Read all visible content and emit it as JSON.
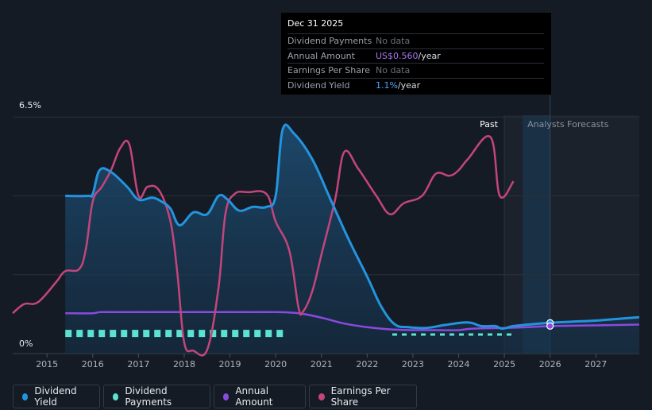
{
  "tooltip": {
    "date": "Dec 31 2025",
    "rows": [
      {
        "label": "Dividend Payments",
        "value": "No data",
        "unit": ""
      },
      {
        "label": "Annual Amount",
        "value": "US$0.560",
        "unit": "/year"
      },
      {
        "label": "Earnings Per Share",
        "value": "No data",
        "unit": ""
      },
      {
        "label": "Dividend Yield",
        "value": "1.1%",
        "unit": "/year"
      }
    ]
  },
  "colors": {
    "dividend_yield": "#2394df",
    "dividend_payments": "#5be3d0",
    "annual_amount": "#8a4ae0",
    "earnings_per_share": "#c4457b",
    "annual_amount_text": "#a974f5",
    "yield_text": "#4aa8ff"
  },
  "chart_data": {
    "type": "line",
    "title": "",
    "xlabel": "",
    "ylabel": "",
    "ylim": [
      0,
      6.5
    ],
    "xlim": [
      2014.25,
      2027.95
    ],
    "y_top_label": "6.5%",
    "y_bottom_label": "0%",
    "x_ticks": [
      2015,
      2016,
      2017,
      2018,
      2019,
      2020,
      2021,
      2022,
      2023,
      2024,
      2025,
      2026,
      2027
    ],
    "x_tick_labels": [
      "2015",
      "2016",
      "2017",
      "2018",
      "2019",
      "2020",
      "2021",
      "2022",
      "2023",
      "2024",
      "2025",
      "2026",
      "2027"
    ],
    "past_label": "Past",
    "forecast_label": "Analysts Forecasts",
    "forecast_start": 2025.0,
    "highlight": {
      "start": 2025.4,
      "end": 2026.0
    },
    "series": [
      {
        "name": "Dividend Yield",
        "key": "dividend_yield",
        "points": [
          [
            2015.4,
            4.3
          ],
          [
            2015.9,
            4.3
          ],
          [
            2016.0,
            4.35
          ],
          [
            2016.15,
            5.0
          ],
          [
            2016.4,
            4.95
          ],
          [
            2016.75,
            4.55
          ],
          [
            2017.0,
            4.2
          ],
          [
            2017.3,
            4.25
          ],
          [
            2017.5,
            4.15
          ],
          [
            2017.7,
            3.95
          ],
          [
            2017.9,
            3.5
          ],
          [
            2018.2,
            3.85
          ],
          [
            2018.5,
            3.8
          ],
          [
            2018.75,
            4.3
          ],
          [
            2018.95,
            4.2
          ],
          [
            2019.2,
            3.9
          ],
          [
            2019.5,
            4.0
          ],
          [
            2019.8,
            4.0
          ],
          [
            2020.0,
            4.3
          ],
          [
            2020.15,
            6.1
          ],
          [
            2020.4,
            6.0
          ],
          [
            2020.8,
            5.3
          ],
          [
            2021.2,
            4.2
          ],
          [
            2021.6,
            3.1
          ],
          [
            2022.0,
            2.1
          ],
          [
            2022.3,
            1.3
          ],
          [
            2022.6,
            0.8
          ],
          [
            2022.9,
            0.72
          ],
          [
            2023.3,
            0.7
          ],
          [
            2023.7,
            0.78
          ],
          [
            2024.2,
            0.85
          ],
          [
            2024.5,
            0.75
          ],
          [
            2024.8,
            0.75
          ],
          [
            2024.95,
            0.68
          ],
          [
            2025.2,
            0.75
          ],
          [
            2025.6,
            0.8
          ],
          [
            2026.0,
            0.84
          ],
          [
            2026.5,
            0.87
          ],
          [
            2027.0,
            0.9
          ],
          [
            2027.5,
            0.95
          ],
          [
            2027.95,
            0.99
          ]
        ]
      },
      {
        "name": "Dividend Payments",
        "key": "dividend_payments",
        "segments": [
          {
            "start": 2015.4,
            "end": 2020.2,
            "value": 0.55
          },
          {
            "start": 2022.55,
            "end": 2025.25,
            "value": 0.52
          }
        ]
      },
      {
        "name": "Annual Amount",
        "key": "annual_amount",
        "points": [
          [
            2015.4,
            1.1
          ],
          [
            2016.0,
            1.1
          ],
          [
            2016.2,
            1.13
          ],
          [
            2017.0,
            1.13
          ],
          [
            2018.0,
            1.13
          ],
          [
            2019.0,
            1.13
          ],
          [
            2020.0,
            1.13
          ],
          [
            2020.5,
            1.1
          ],
          [
            2021.0,
            0.98
          ],
          [
            2021.5,
            0.82
          ],
          [
            2022.0,
            0.72
          ],
          [
            2022.5,
            0.66
          ],
          [
            2023.0,
            0.64
          ],
          [
            2023.5,
            0.64
          ],
          [
            2024.0,
            0.64
          ],
          [
            2024.3,
            0.68
          ],
          [
            2025.0,
            0.7
          ],
          [
            2025.5,
            0.72
          ],
          [
            2026.0,
            0.75
          ],
          [
            2027.0,
            0.77
          ],
          [
            2027.95,
            0.79
          ]
        ]
      },
      {
        "name": "Earnings Per Share",
        "key": "earnings_per_share",
        "points": [
          [
            2014.25,
            1.1
          ],
          [
            2014.5,
            1.35
          ],
          [
            2014.8,
            1.4
          ],
          [
            2015.2,
            1.95
          ],
          [
            2015.4,
            2.25
          ],
          [
            2015.7,
            2.3
          ],
          [
            2015.85,
            2.85
          ],
          [
            2016.0,
            4.15
          ],
          [
            2016.2,
            4.55
          ],
          [
            2016.4,
            5.0
          ],
          [
            2016.6,
            5.6
          ],
          [
            2016.8,
            5.7
          ],
          [
            2017.0,
            4.3
          ],
          [
            2017.2,
            4.55
          ],
          [
            2017.45,
            4.45
          ],
          [
            2017.7,
            3.6
          ],
          [
            2017.85,
            2.2
          ],
          [
            2018.0,
            0.3
          ],
          [
            2018.2,
            0.08
          ],
          [
            2018.5,
            0.1
          ],
          [
            2018.75,
            1.8
          ],
          [
            2018.9,
            3.8
          ],
          [
            2019.1,
            4.35
          ],
          [
            2019.4,
            4.4
          ],
          [
            2019.8,
            4.35
          ],
          [
            2020.0,
            3.6
          ],
          [
            2020.3,
            2.8
          ],
          [
            2020.5,
            1.25
          ],
          [
            2020.6,
            1.15
          ],
          [
            2020.8,
            1.7
          ],
          [
            2021.0,
            2.7
          ],
          [
            2021.3,
            4.2
          ],
          [
            2021.5,
            5.5
          ],
          [
            2021.8,
            5.05
          ],
          [
            2022.2,
            4.3
          ],
          [
            2022.5,
            3.8
          ],
          [
            2022.8,
            4.1
          ],
          [
            2023.2,
            4.3
          ],
          [
            2023.5,
            4.9
          ],
          [
            2023.8,
            4.85
          ],
          [
            2024.0,
            5.0
          ],
          [
            2024.2,
            5.3
          ],
          [
            2024.7,
            5.9
          ],
          [
            2024.9,
            4.3
          ],
          [
            2025.2,
            4.7
          ]
        ]
      }
    ],
    "markers": [
      {
        "series": "dividend_yield",
        "x": 2026.0,
        "y": 0.84
      },
      {
        "series": "annual_amount",
        "x": 2026.0,
        "y": 0.75
      }
    ]
  },
  "legend": [
    {
      "label": "Dividend Yield",
      "key": "dividend_yield"
    },
    {
      "label": "Dividend Payments",
      "key": "dividend_payments"
    },
    {
      "label": "Annual Amount",
      "key": "annual_amount"
    },
    {
      "label": "Earnings Per Share",
      "key": "earnings_per_share"
    }
  ]
}
